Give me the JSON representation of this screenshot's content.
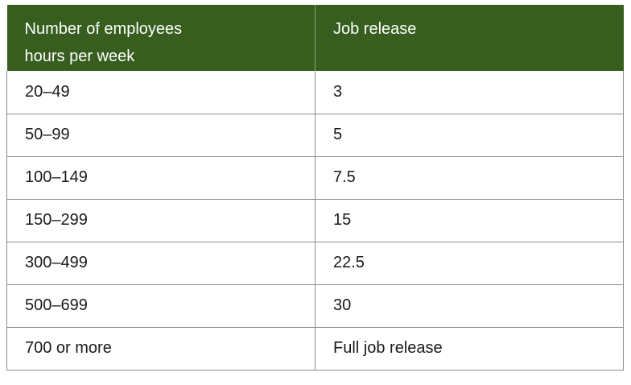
{
  "table": {
    "headers": {
      "col1_line1": "Number of employees",
      "col1_line2": "hours per week",
      "col2": "Job release"
    },
    "rows": [
      {
        "employees": "20–49",
        "release": "3"
      },
      {
        "employees": "50–99",
        "release": "5"
      },
      {
        "employees": "100–149",
        "release": "7.5"
      },
      {
        "employees": "150–299",
        "release": "15"
      },
      {
        "employees": "300–499",
        "release": "22.5"
      },
      {
        "employees": "500–699",
        "release": "30"
      },
      {
        "employees": "700 or more",
        "release": "Full job release"
      }
    ]
  },
  "colors": {
    "header_bg": "#375e1e",
    "header_text": "#ffffff",
    "border": "#8c8c8c"
  }
}
